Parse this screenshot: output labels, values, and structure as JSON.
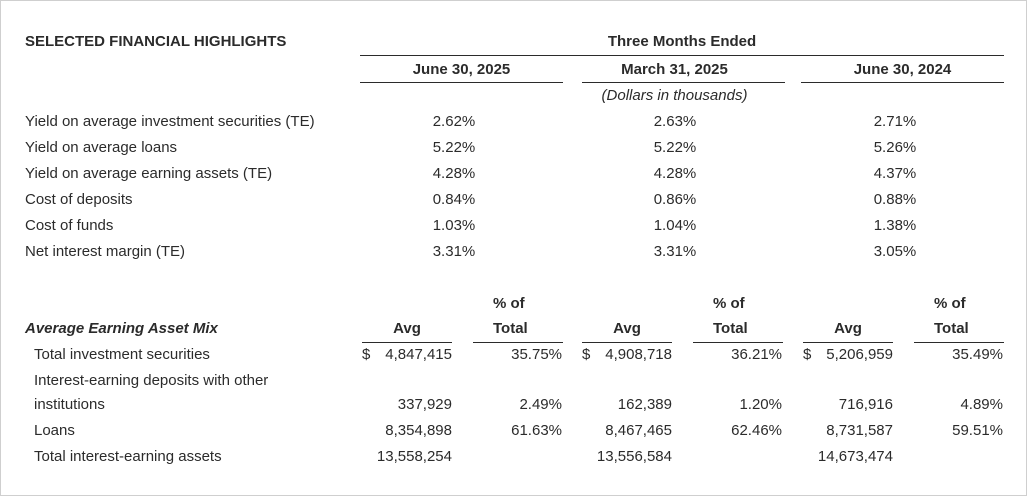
{
  "title": "SELECTED FINANCIAL HIGHLIGHTS",
  "period_header": "Three Months Ended",
  "columns": [
    "June 30, 2025",
    "March 31, 2025",
    "June 30, 2024"
  ],
  "units_note": "(Dollars in thousands)",
  "yields": [
    {
      "label": "Yield on average investment securities (TE)",
      "values": [
        "2.62%",
        "2.63%",
        "2.71%"
      ]
    },
    {
      "label": "Yield on average loans",
      "values": [
        "5.22%",
        "5.22%",
        "5.26%"
      ]
    },
    {
      "label": "Yield on average earning assets (TE)",
      "values": [
        "4.28%",
        "4.28%",
        "4.37%"
      ]
    },
    {
      "label": "Cost of deposits",
      "values": [
        "0.84%",
        "0.86%",
        "0.88%"
      ]
    },
    {
      "label": "Cost of funds",
      "values": [
        "1.03%",
        "1.04%",
        "1.38%"
      ]
    },
    {
      "label": "Net interest margin (TE)",
      "values": [
        "3.31%",
        "3.31%",
        "3.05%"
      ]
    }
  ],
  "mix": {
    "title": "Average Earning Asset Mix",
    "avg_header": "Avg",
    "pct_header_line1": "% of",
    "pct_header_line2": "Total",
    "currency_symbol": "$",
    "rows": [
      {
        "label": "Total investment securities",
        "cells": [
          [
            "4,847,415",
            "35.75%"
          ],
          [
            "4,908,718",
            "36.21%"
          ],
          [
            "5,206,959",
            "35.49%"
          ]
        ]
      },
      {
        "label_line1": "Interest-earning deposits with other",
        "label_line2": "institutions",
        "cells": [
          [
            "337,929",
            "2.49%"
          ],
          [
            "162,389",
            "1.20%"
          ],
          [
            "716,916",
            "4.89%"
          ]
        ]
      },
      {
        "label": "Loans",
        "cells": [
          [
            "8,354,898",
            "61.63%"
          ],
          [
            "8,467,465",
            "62.46%"
          ],
          [
            "8,731,587",
            "59.51%"
          ]
        ]
      },
      {
        "label": "Total interest-earning assets",
        "cells": [
          [
            "13,558,254",
            ""
          ],
          [
            "13,556,584",
            ""
          ],
          [
            "14,673,474",
            ""
          ]
        ]
      }
    ]
  }
}
